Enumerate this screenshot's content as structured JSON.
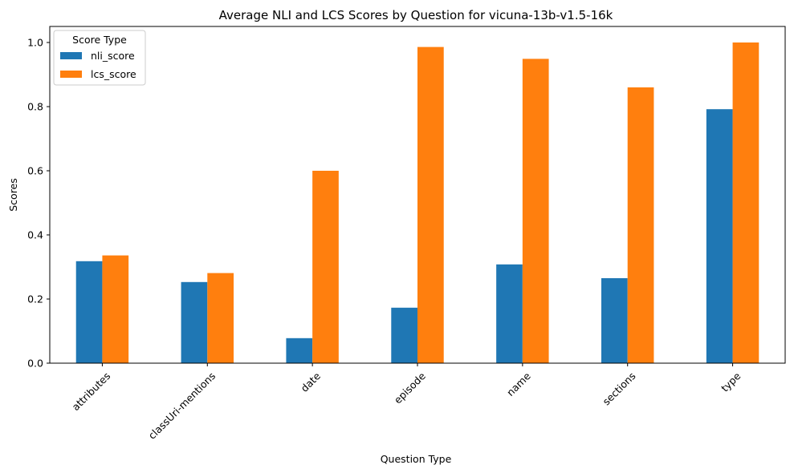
{
  "chart_data": {
    "type": "bar",
    "title": "Average NLI and LCS Scores by Question for vicuna-13b-v1.5-16k",
    "xlabel": "Question Type",
    "ylabel": "Scores",
    "categories": [
      "attributes",
      "classUri-mentions",
      "date",
      "episode",
      "name",
      "sections",
      "type"
    ],
    "series": [
      {
        "name": "nli_score",
        "color": "#1f77b4",
        "values": [
          0.318,
          0.253,
          0.078,
          0.173,
          0.308,
          0.265,
          0.792
        ]
      },
      {
        "name": "lcs_score",
        "color": "#ff7f0e",
        "values": [
          0.336,
          0.281,
          0.6,
          0.986,
          0.949,
          0.86,
          1.0
        ]
      }
    ],
    "ylim": [
      0,
      1.05
    ],
    "yticks": [
      0.0,
      0.2,
      0.4,
      0.6,
      0.8,
      1.0
    ],
    "ytick_labels": [
      "0.0",
      "0.2",
      "0.4",
      "0.6",
      "0.8",
      "1.0"
    ],
    "legend": {
      "title": "Score Type",
      "placement": "top-left"
    },
    "grid": false
  }
}
